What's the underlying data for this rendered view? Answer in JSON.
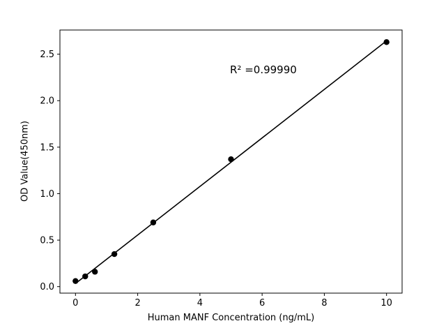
{
  "chart_data": {
    "type": "scatter",
    "title": "",
    "xlabel": "Human MANF Concentration (ng/mL)",
    "ylabel": "OD Value(450nm)",
    "annotation": "R² =0.99990",
    "x": [
      0,
      0.3125,
      0.625,
      1.25,
      2.5,
      5,
      10
    ],
    "y": [
      0.06,
      0.11,
      0.16,
      0.35,
      0.69,
      1.37,
      2.63
    ],
    "xlim": [
      -0.5,
      10.5
    ],
    "ylim": [
      -0.07,
      2.76
    ],
    "xticks": [
      0,
      2,
      4,
      6,
      8,
      10
    ],
    "xtick_labels": [
      "0",
      "2",
      "4",
      "6",
      "8",
      "10"
    ],
    "yticks": [
      0.0,
      0.5,
      1.0,
      1.5,
      2.0,
      2.5
    ],
    "ytick_labels": [
      "0.0",
      "0.5",
      "1.0",
      "1.5",
      "2.0",
      "2.5"
    ],
    "marker_color": "#000000",
    "line_color": "#000000",
    "axis_color": "#000000",
    "grid": false,
    "legend": null
  }
}
